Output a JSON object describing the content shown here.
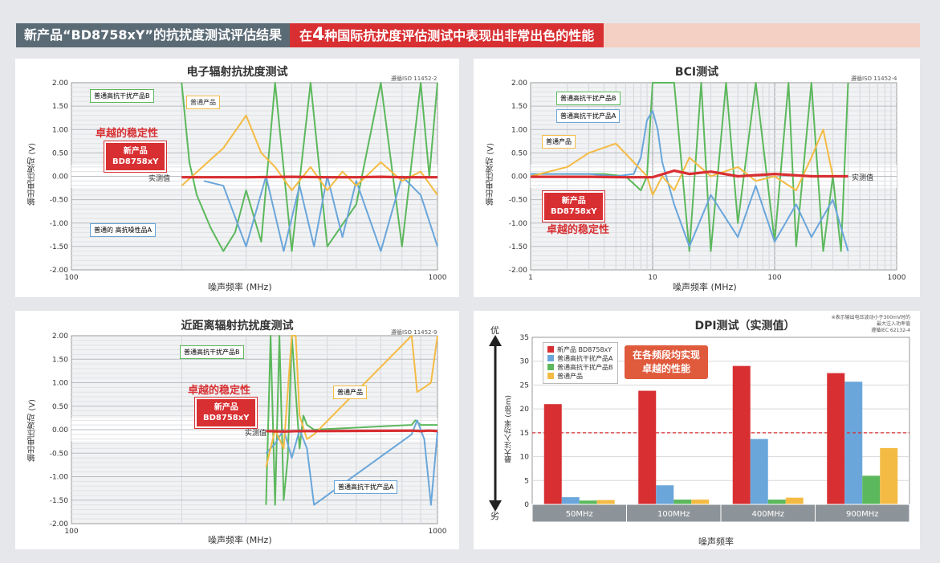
{
  "banner": {
    "left": "新产品“BD8758xY”的抗扰度测试评估结果",
    "right_pre": "在",
    "right_num": "4",
    "right_post": "种国际抗扰度评估测试中表现出非常出色的性能"
  },
  "colors": {
    "red": "#d82f32",
    "blue": "#6aa6da",
    "green": "#5cb85c",
    "yellow": "#f4bb44"
  },
  "panels": {
    "p1": {
      "title": "电子辐射抗扰度测试",
      "standard": "遵循ISO 11452-2",
      "ylabel": "输出电压波动 (V)",
      "xlabel": "噪声频率 (MHz)",
      "yticks": [
        "2.00",
        "1.50",
        "1.00",
        "0.50",
        "0.00",
        "-0.50",
        "-1.00",
        "-1.50",
        "-2.00"
      ],
      "xticks": [
        "100",
        "1000"
      ],
      "tag_green": "普通高抗干扰产品B",
      "tag_yellow": "普通产品",
      "tag_blue": "普通的 高抗噪性品A",
      "stable": "卓越的稳定性",
      "newprod_1": "新产品",
      "newprod_2": "BD8758xY",
      "measured": "实测值"
    },
    "p2": {
      "title": "BCI测试",
      "standard": "遵循ISO 11452-4",
      "ylabel": "输出电压波动 (V)",
      "xlabel": "噪声频率 (MHz)",
      "yticks": [
        "2.00",
        "1.50",
        "1.00",
        "0.50",
        "0.00",
        "-0.50",
        "-1.00",
        "-1.50",
        "-2.00"
      ],
      "xticks": [
        "1",
        "10",
        "100",
        "1000"
      ],
      "tag_green": "普通高抗干扰产品B",
      "tag_blue": "普通高抗干扰产品A",
      "tag_yellow": "普通产品",
      "stable": "卓越的稳定性",
      "newprod_1": "新产品",
      "newprod_2": "BD8758xY",
      "measured": "实测值"
    },
    "p3": {
      "title": "近距离辐射抗扰度测试",
      "standard": "遵循ISO 11452-9",
      "ylabel": "输出电压波动 (V)",
      "xlabel": "噪声频率 (MHz)",
      "yticks": [
        "2.00",
        "1.50",
        "1.00",
        "0.50",
        "0.00",
        "-0.50",
        "-1.00",
        "-1.50",
        "-2.00"
      ],
      "xticks": [
        "100",
        "1000"
      ],
      "tag_green": "普通高抗干扰产品B",
      "tag_yellow": "普通产品",
      "tag_blue": "普通高抗干扰产品A",
      "stable": "卓越的稳定性",
      "newprod_1": "新产品",
      "newprod_2": "BD8758xY",
      "measured": "实测值"
    },
    "p4": {
      "title": "DPI测试（实测值）",
      "note_1": "※表示输出电压波动小于300mV时的",
      "note_2": "最大注入功率值",
      "standard": "遵循IEC 62132-4",
      "ylabel": "最大注入功率 (dBm)",
      "xlabel": "噪声频率",
      "yticks": [
        "35",
        "30",
        "25",
        "20",
        "15",
        "10",
        "5",
        "0"
      ],
      "best": "优",
      "worst": "劣",
      "promo_1": "在各频段均实现",
      "promo_2": "卓越的性能"
    }
  },
  "chart_data": [
    {
      "type": "line",
      "title": "电子辐射抗扰度测试",
      "xlabel": "噪声频率 (MHz)",
      "ylabel": "输出电压波动 (V)",
      "xscale": "log",
      "xlim": [
        100,
        1000
      ],
      "ylim": [
        -2,
        2
      ],
      "grid": true,
      "series": [
        {
          "name": "新产品 BD8758xY",
          "color": "#d82f32",
          "x": [
            200,
            300,
            400,
            500,
            600,
            700,
            800,
            900,
            1000
          ],
          "y": [
            -0.02,
            -0.02,
            -0.01,
            -0.02,
            -0.02,
            -0.01,
            -0.02,
            -0.02,
            -0.02
          ]
        },
        {
          "name": "普通高抗干扰产品B",
          "color": "#5cb85c",
          "x": [
            200,
            210,
            220,
            240,
            260,
            280,
            300,
            330,
            360,
            400,
            450,
            500,
            600,
            700,
            800,
            900,
            950,
            1000
          ],
          "y": [
            2.0,
            0.3,
            -0.4,
            -1.1,
            -1.6,
            -1.2,
            -0.3,
            -1.4,
            2.0,
            -1.6,
            2.0,
            -1.5,
            -0.6,
            2.0,
            -1.5,
            2.0,
            0.0,
            2.0
          ]
        },
        {
          "name": "普通的 高抗噪性品A",
          "color": "#6aa6da",
          "x": [
            230,
            260,
            300,
            340,
            380,
            420,
            460,
            500,
            550,
            600,
            700,
            800,
            900,
            1000
          ],
          "y": [
            -0.1,
            -0.2,
            -1.5,
            0.0,
            -1.6,
            -0.2,
            -1.5,
            0.0,
            -1.3,
            -0.1,
            -1.6,
            0.0,
            -0.4,
            -1.5
          ]
        },
        {
          "name": "普通产品",
          "color": "#f4bb44",
          "x": [
            200,
            260,
            300,
            330,
            360,
            400,
            450,
            500,
            550,
            600,
            700,
            800,
            900,
            1000
          ],
          "y": [
            -0.2,
            0.6,
            1.3,
            0.5,
            0.2,
            -0.3,
            0.2,
            -0.3,
            0.1,
            -0.2,
            0.3,
            -0.1,
            0.1,
            -0.4
          ]
        }
      ]
    },
    {
      "type": "line",
      "title": "BCI测试",
      "xlabel": "噪声频率 (MHz)",
      "ylabel": "输出电压波动 (V)",
      "xscale": "log",
      "xlim": [
        1,
        1000
      ],
      "ylim": [
        -2,
        2
      ],
      "grid": true,
      "series": [
        {
          "name": "新产品 BD8758xY",
          "color": "#d82f32",
          "x": [
            1,
            3,
            6,
            10,
            15,
            20,
            30,
            50,
            100,
            200,
            400
          ],
          "y": [
            -0.01,
            -0.01,
            -0.02,
            -0.02,
            0.12,
            0.05,
            0.1,
            0.0,
            0.05,
            0.0,
            0.0
          ]
        },
        {
          "name": "普通高抗干扰产品B",
          "color": "#5cb85c",
          "x": [
            1,
            4,
            6,
            8,
            9,
            10,
            12,
            15,
            20,
            25,
            30,
            40,
            50,
            70,
            100,
            130,
            150,
            200,
            250,
            300,
            350,
            400
          ],
          "y": [
            0.05,
            0.05,
            0.0,
            -0.3,
            0.0,
            2.0,
            2.0,
            2.0,
            -1.6,
            2.0,
            -1.6,
            2.0,
            -1.0,
            2.0,
            -1.4,
            2.0,
            -1.5,
            2.0,
            -1.6,
            0.0,
            -1.6,
            2.0
          ]
        },
        {
          "name": "普通高抗干扰产品A",
          "color": "#6aa6da",
          "x": [
            1,
            3,
            5,
            7,
            8,
            9,
            10,
            11,
            12,
            15,
            20,
            30,
            50,
            70,
            100,
            150,
            200,
            300,
            400
          ],
          "y": [
            0.05,
            0.05,
            0.0,
            0.05,
            0.4,
            1.2,
            1.4,
            1.0,
            0.3,
            -0.6,
            -1.5,
            -0.4,
            -1.3,
            -0.2,
            -1.4,
            -0.6,
            -1.3,
            -0.5,
            -1.6
          ]
        },
        {
          "name": "普通产品",
          "color": "#f4bb44",
          "x": [
            1,
            2,
            3,
            5,
            7,
            9,
            10,
            12,
            15,
            20,
            30,
            50,
            70,
            100,
            150,
            200,
            250,
            300,
            400
          ],
          "y": [
            0.0,
            0.2,
            0.5,
            0.7,
            0.3,
            0.0,
            -0.4,
            0.0,
            -0.3,
            0.4,
            0.0,
            0.2,
            -0.1,
            0.0,
            -0.3,
            0.4,
            1.0,
            0.0,
            0.0
          ]
        }
      ]
    },
    {
      "type": "line",
      "title": "近距离辐射抗扰度测试",
      "xlabel": "噪声频率 (MHz)",
      "ylabel": "输出电压波动 (V)",
      "xscale": "log",
      "xlim": [
        100,
        1000
      ],
      "ylim": [
        -2,
        2
      ],
      "grid": true,
      "series": [
        {
          "name": "新产品 BD8758xY",
          "color": "#d82f32",
          "x": [
            340,
            380,
            420,
            460,
            850,
            900,
            950,
            1000
          ],
          "y": [
            -0.03,
            -0.04,
            -0.03,
            -0.03,
            -0.02,
            -0.03,
            -0.02,
            -0.03
          ]
        },
        {
          "name": "普通高抗干扰产品B",
          "color": "#5cb85c",
          "x": [
            340,
            350,
            360,
            370,
            380,
            390,
            400,
            410,
            420,
            430,
            440,
            460,
            850,
            870,
            900,
            950,
            1000
          ],
          "y": [
            -1.6,
            2.0,
            -1.6,
            2.0,
            -1.5,
            -0.6,
            2.0,
            0.8,
            -0.4,
            0.3,
            0.1,
            0.0,
            0.1,
            0.2,
            0.1,
            0.1,
            0.1
          ]
        },
        {
          "name": "普通高抗干扰产品A",
          "color": "#6aa6da",
          "x": [
            340,
            360,
            380,
            400,
            420,
            440,
            460,
            850,
            880,
            920,
            960,
            1000
          ],
          "y": [
            -0.5,
            -0.3,
            0.0,
            -0.6,
            0.0,
            -0.4,
            -1.6,
            -0.1,
            0.2,
            -0.2,
            -1.6,
            -0.05
          ]
        },
        {
          "name": "普通产品",
          "color": "#f4bb44",
          "x": [
            340,
            360,
            380,
            400,
            410,
            420,
            440,
            460,
            850,
            880,
            920,
            960,
            1000
          ],
          "y": [
            -0.8,
            0.0,
            -0.4,
            2.0,
            2.0,
            0.3,
            -0.2,
            -0.1,
            2.0,
            0.8,
            0.9,
            1.0,
            2.0
          ]
        }
      ]
    },
    {
      "type": "bar",
      "title": "DPI测试（实测值）",
      "xlabel": "噪声频率",
      "ylabel": "最大注入功率 (dBm)",
      "categories": [
        "50MHz",
        "100MHz",
        "400MHz",
        "900MHz"
      ],
      "ylim": [
        0,
        35
      ],
      "threshold": 15,
      "legend": "top-left",
      "series": [
        {
          "name": "新产品 BD8758xY",
          "color": "#d82f32",
          "values": [
            21,
            23.8,
            29,
            27.5
          ]
        },
        {
          "name": "普通高抗干扰产品A",
          "color": "#6aa6da",
          "values": [
            1.5,
            4,
            13.7,
            25.7
          ]
        },
        {
          "name": "普通高抗干扰产品B",
          "color": "#5cb85c",
          "values": [
            0.8,
            1,
            1,
            6
          ]
        },
        {
          "name": "普通产品",
          "color": "#f4bb44",
          "values": [
            0.9,
            1,
            1.4,
            11.8
          ]
        }
      ]
    }
  ]
}
